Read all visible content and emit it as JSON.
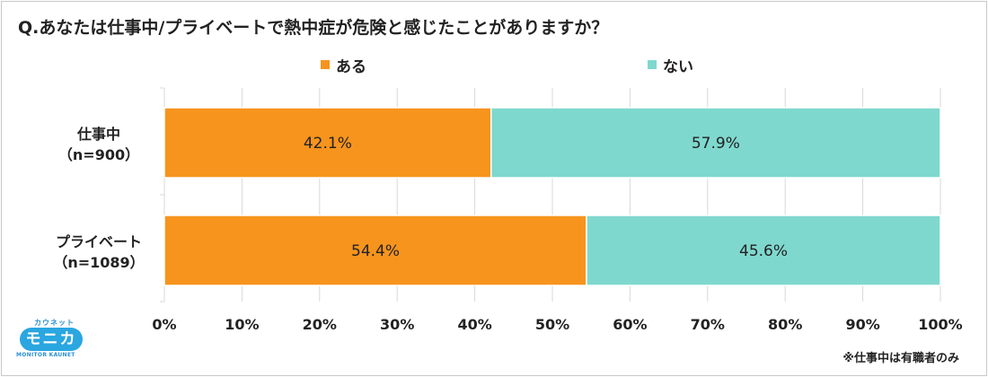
{
  "title": "Q.あなたは仕事中/プライベートで熱中症が危険と感じたことがありますか？",
  "footnote": "※仕事中は有職者のみ",
  "logo": {
    "top_text": "カウネット",
    "main_text": "モニカ",
    "bottom_text": "MONITOR KAUNET"
  },
  "colors": {
    "aru": "#F7941D",
    "nai": "#7FD8CE",
    "gridline": "#d9d9d9",
    "logo_blue": "#2aa6e0"
  },
  "chart_data": {
    "type": "bar",
    "orientation": "horizontal",
    "stacked": true,
    "percent": true,
    "categories": [
      {
        "name": "仕事中",
        "n": "（n=900）"
      },
      {
        "name": "プライベート",
        "n": "（n=1089）"
      }
    ],
    "series": [
      {
        "name": "ある",
        "values": [
          42.1,
          54.4
        ],
        "labels": [
          "42.1%",
          "54.4%"
        ]
      },
      {
        "name": "ない",
        "values": [
          57.9,
          45.6
        ],
        "labels": [
          "57.9%",
          "45.6%"
        ]
      }
    ],
    "xlim": [
      0,
      100
    ],
    "xticks": [
      "0%",
      "10%",
      "20%",
      "30%",
      "40%",
      "50%",
      "60%",
      "70%",
      "80%",
      "90%",
      "100%"
    ],
    "grid": true,
    "legend": "top-center"
  }
}
